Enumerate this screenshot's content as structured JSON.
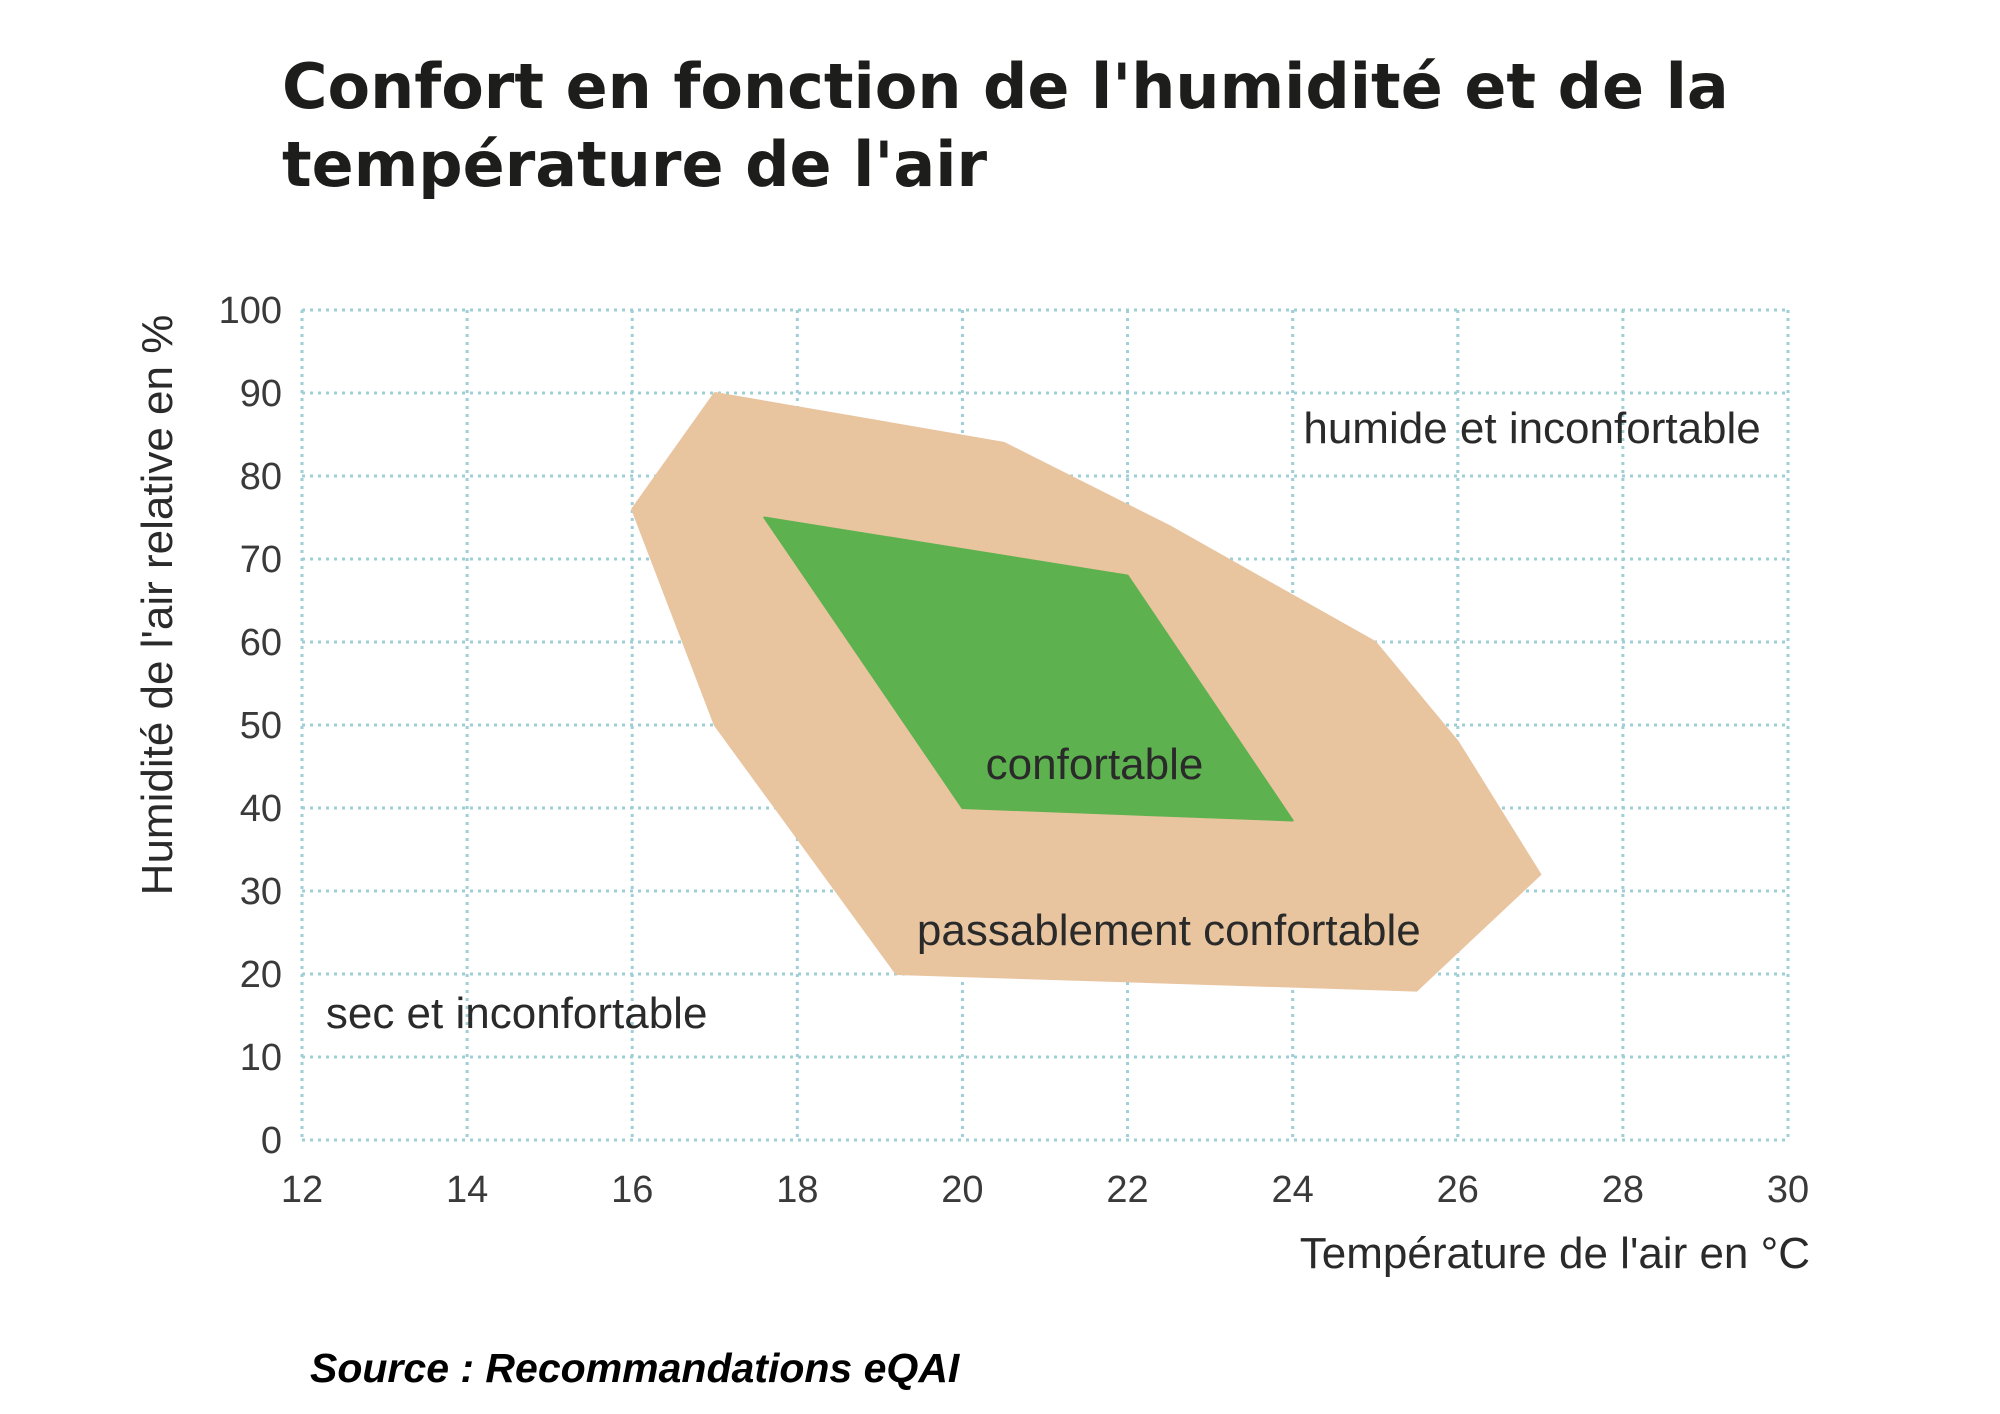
{
  "chart_data": {
    "type": "area",
    "title": "Confort en fonction de l'humidité et de la température de l'air",
    "xlabel": "Température de l'air en °C",
    "ylabel": "Humidité de l'air relative en %",
    "xlim": [
      12,
      30
    ],
    "ylim": [
      0,
      100
    ],
    "x_ticks": [
      12,
      14,
      16,
      18,
      20,
      22,
      24,
      26,
      28,
      30
    ],
    "y_ticks": [
      0,
      10,
      20,
      30,
      40,
      50,
      60,
      70,
      80,
      90,
      100
    ],
    "grid": true,
    "regions": [
      {
        "name": "passablement confortable",
        "color": "#E8C49F",
        "polygon": [
          [
            17.0,
            90
          ],
          [
            20.5,
            84
          ],
          [
            22.5,
            74
          ],
          [
            25.0,
            60
          ],
          [
            26.0,
            48
          ],
          [
            27.0,
            32
          ],
          [
            25.5,
            18
          ],
          [
            19.2,
            20
          ],
          [
            17.0,
            50
          ],
          [
            16.0,
            76
          ]
        ]
      },
      {
        "name": "confortable",
        "color": "#5DB14E",
        "polygon": [
          [
            17.6,
            75
          ],
          [
            22.0,
            68
          ],
          [
            24.0,
            38.5
          ],
          [
            20.0,
            40
          ]
        ]
      }
    ],
    "annotations": [
      {
        "text": "humide et inconfortable",
        "x": 26.9,
        "y": 84
      },
      {
        "text": "confortable",
        "x": 21.6,
        "y": 43.5
      },
      {
        "text": "passablement confortable",
        "x": 22.5,
        "y": 23.5
      },
      {
        "text": "sec et inconfortable",
        "x": 14.6,
        "y": 13.5
      }
    ]
  },
  "footer": {
    "source": "Source : Recommandations eQAI"
  },
  "colors": {
    "grid": "#9FCFD6",
    "axis": "#7FB9C3"
  }
}
